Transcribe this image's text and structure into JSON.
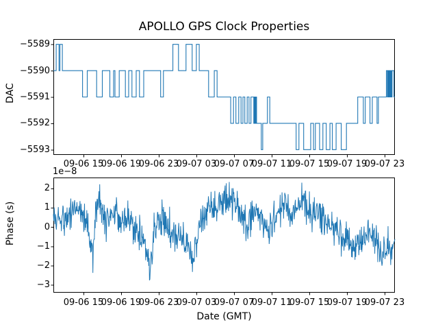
{
  "figure": {
    "title": "APOLLO GPS Clock Properties",
    "background": "#ffffff",
    "line_color": "#1f77b4",
    "text_color": "#000000"
  },
  "chart_data": [
    {
      "type": "line",
      "subtype": "step-post",
      "title": "APOLLO GPS Clock Properties",
      "ylabel": "DAC",
      "color": "#1f77b4",
      "grid": false,
      "legend": null,
      "x_hours_origin": "09-06 00:00",
      "xlim_hours": [
        11.8,
        48.1
      ],
      "ylim": [
        -5593.2,
        -5588.8
      ],
      "yticks": [
        -5589,
        -5590,
        -5591,
        -5592,
        -5593
      ],
      "yticklabels": [
        "−5589",
        "−5590",
        "−5591",
        "−5592",
        "−5593"
      ],
      "xtick_hours": [
        15,
        19,
        23,
        27,
        31,
        35,
        39,
        43,
        47
      ],
      "xticklabels": [
        "09-06 15",
        "09-06 19",
        "09-06 23",
        "09-07 03",
        "09-07 07",
        "09-07 11",
        "09-07 15",
        "09-07 19",
        "09-07 23"
      ],
      "steps": [
        [
          11.8,
          -5590
        ],
        [
          12.1,
          -5589
        ],
        [
          12.4,
          -5590
        ],
        [
          12.5,
          -5589
        ],
        [
          12.75,
          -5590
        ],
        [
          14.9,
          -5591
        ],
        [
          15.4,
          -5590
        ],
        [
          16.4,
          -5591
        ],
        [
          17.0,
          -5590
        ],
        [
          17.8,
          -5591
        ],
        [
          18.2,
          -5590
        ],
        [
          18.35,
          -5591
        ],
        [
          18.8,
          -5590
        ],
        [
          19.45,
          -5591
        ],
        [
          19.8,
          -5590
        ],
        [
          20.15,
          -5591
        ],
        [
          20.6,
          -5590
        ],
        [
          20.95,
          -5591
        ],
        [
          21.4,
          -5590
        ],
        [
          23.2,
          -5591
        ],
        [
          23.5,
          -5590
        ],
        [
          24.5,
          -5589
        ],
        [
          25.1,
          -5590
        ],
        [
          25.9,
          -5589
        ],
        [
          26.55,
          -5590
        ],
        [
          27.0,
          -5589
        ],
        [
          27.3,
          -5590
        ],
        [
          28.3,
          -5591
        ],
        [
          28.9,
          -5590
        ],
        [
          29.2,
          -5591
        ],
        [
          30.65,
          -5592
        ],
        [
          30.95,
          -5591
        ],
        [
          31.2,
          -5592
        ],
        [
          31.5,
          -5591
        ],
        [
          31.75,
          -5592
        ],
        [
          31.95,
          -5591
        ],
        [
          32.15,
          -5592
        ],
        [
          32.4,
          -5591
        ],
        [
          32.6,
          -5592
        ],
        [
          32.8,
          -5591
        ],
        [
          33.1,
          -5592
        ],
        [
          33.18,
          -5591
        ],
        [
          33.25,
          -5592
        ],
        [
          33.33,
          -5591
        ],
        [
          33.4,
          -5592
        ],
        [
          33.9,
          -5593
        ],
        [
          34.05,
          -5592
        ],
        [
          34.55,
          -5591
        ],
        [
          34.8,
          -5592
        ],
        [
          37.6,
          -5593
        ],
        [
          37.9,
          -5592
        ],
        [
          38.4,
          -5593
        ],
        [
          39.15,
          -5592
        ],
        [
          39.45,
          -5593
        ],
        [
          39.65,
          -5592
        ],
        [
          40.1,
          -5593
        ],
        [
          40.45,
          -5592
        ],
        [
          40.8,
          -5593
        ],
        [
          41.2,
          -5592
        ],
        [
          41.45,
          -5593
        ],
        [
          41.85,
          -5592
        ],
        [
          42.4,
          -5593
        ],
        [
          42.95,
          -5592
        ],
        [
          44.15,
          -5591
        ],
        [
          44.75,
          -5592
        ],
        [
          44.95,
          -5591
        ],
        [
          45.45,
          -5592
        ],
        [
          45.7,
          -5591
        ],
        [
          46.2,
          -5592
        ],
        [
          46.35,
          -5591
        ],
        [
          47.2,
          -5590
        ],
        [
          47.3,
          -5591
        ],
        [
          47.37,
          -5590
        ],
        [
          47.45,
          -5591
        ],
        [
          47.52,
          -5590
        ],
        [
          47.59,
          -5591
        ],
        [
          47.66,
          -5590
        ],
        [
          47.73,
          -5591
        ],
        [
          47.8,
          -5590
        ],
        [
          48.0,
          -5591
        ]
      ]
    },
    {
      "type": "line",
      "ylabel": "Phase (s)",
      "xlabel": "Date (GMT)",
      "offset_text": "1e−8",
      "units_multiplier": 1e-08,
      "color": "#1f77b4",
      "grid": false,
      "legend": null,
      "x_hours_origin": "09-06 00:00",
      "xlim_hours": [
        11.8,
        48.1
      ],
      "ylim": [
        -3.4,
        2.56
      ],
      "yticks": [
        2,
        1,
        0,
        -1,
        -2,
        -3
      ],
      "yticklabels": [
        "2",
        "1",
        "0",
        "−1",
        "−2",
        "−3"
      ],
      "xtick_hours": [
        15,
        19,
        23,
        27,
        31,
        35,
        39,
        43,
        47
      ],
      "xticklabels": [
        "09-06 15",
        "09-06 19",
        "09-06 23",
        "09-07 03",
        "09-07 07",
        "09-07 11",
        "09-07 15",
        "09-07 19",
        "09-07 23"
      ],
      "trend_1e8": [
        [
          11.8,
          0.5
        ],
        [
          12.3,
          0.4
        ],
        [
          13.0,
          0.4
        ],
        [
          13.8,
          0.9
        ],
        [
          14.3,
          1.25
        ],
        [
          14.7,
          0.8
        ],
        [
          15.3,
          0.3
        ],
        [
          15.8,
          -0.9
        ],
        [
          16.0,
          -1.3
        ],
        [
          16.3,
          0.9
        ],
        [
          16.6,
          1.4
        ],
        [
          17.0,
          0.7
        ],
        [
          17.6,
          0.4
        ],
        [
          18.1,
          0.6
        ],
        [
          18.6,
          0.5
        ],
        [
          19.2,
          0.45
        ],
        [
          19.8,
          0.5
        ],
        [
          20.4,
          0.1
        ],
        [
          21.0,
          -0.4
        ],
        [
          21.5,
          -1.0
        ],
        [
          22.0,
          -2.0
        ],
        [
          22.4,
          -0.6
        ],
        [
          22.9,
          0.3
        ],
        [
          23.3,
          0.8
        ],
        [
          23.8,
          0.2
        ],
        [
          24.3,
          -0.1
        ],
        [
          24.9,
          -0.5
        ],
        [
          25.5,
          -0.6
        ],
        [
          26.1,
          -1.1
        ],
        [
          26.6,
          -1.9
        ],
        [
          26.9,
          -1.0
        ],
        [
          27.3,
          0.0
        ],
        [
          27.8,
          0.5
        ],
        [
          28.4,
          0.9
        ],
        [
          29.0,
          1.0
        ],
        [
          29.6,
          1.2
        ],
        [
          30.1,
          1.3
        ],
        [
          30.7,
          1.45
        ],
        [
          31.3,
          1.1
        ],
        [
          31.7,
          0.8
        ],
        [
          32.2,
          0.3
        ],
        [
          32.5,
          -0.3
        ],
        [
          32.7,
          0.6
        ],
        [
          33.2,
          0.9
        ],
        [
          33.6,
          0.7
        ],
        [
          34.1,
          0.3
        ],
        [
          34.5,
          -0.2
        ],
        [
          34.9,
          0.2
        ],
        [
          35.4,
          0.7
        ],
        [
          35.9,
          0.9
        ],
        [
          36.5,
          1.1
        ],
        [
          37.1,
          0.9
        ],
        [
          37.7,
          1.0
        ],
        [
          38.3,
          1.1
        ],
        [
          38.9,
          0.8
        ],
        [
          39.4,
          0.6
        ],
        [
          40.0,
          0.7
        ],
        [
          40.6,
          0.4
        ],
        [
          41.2,
          0.2
        ],
        [
          41.8,
          0.0
        ],
        [
          42.3,
          -0.3
        ],
        [
          42.9,
          -0.6
        ],
        [
          43.4,
          -0.9
        ],
        [
          43.7,
          -1.5
        ],
        [
          44.1,
          -0.8
        ],
        [
          44.5,
          -0.7
        ],
        [
          45.0,
          -0.5
        ],
        [
          45.6,
          -0.4
        ],
        [
          46.0,
          -0.5
        ],
        [
          46.4,
          -0.9
        ],
        [
          46.7,
          -1.9
        ],
        [
          46.9,
          -1.1
        ],
        [
          47.3,
          -0.9
        ],
        [
          47.7,
          -1.2
        ],
        [
          48.1,
          -0.9
        ]
      ],
      "noise_amplitude": 0.9,
      "n_points": 900,
      "seed": 5
    }
  ]
}
